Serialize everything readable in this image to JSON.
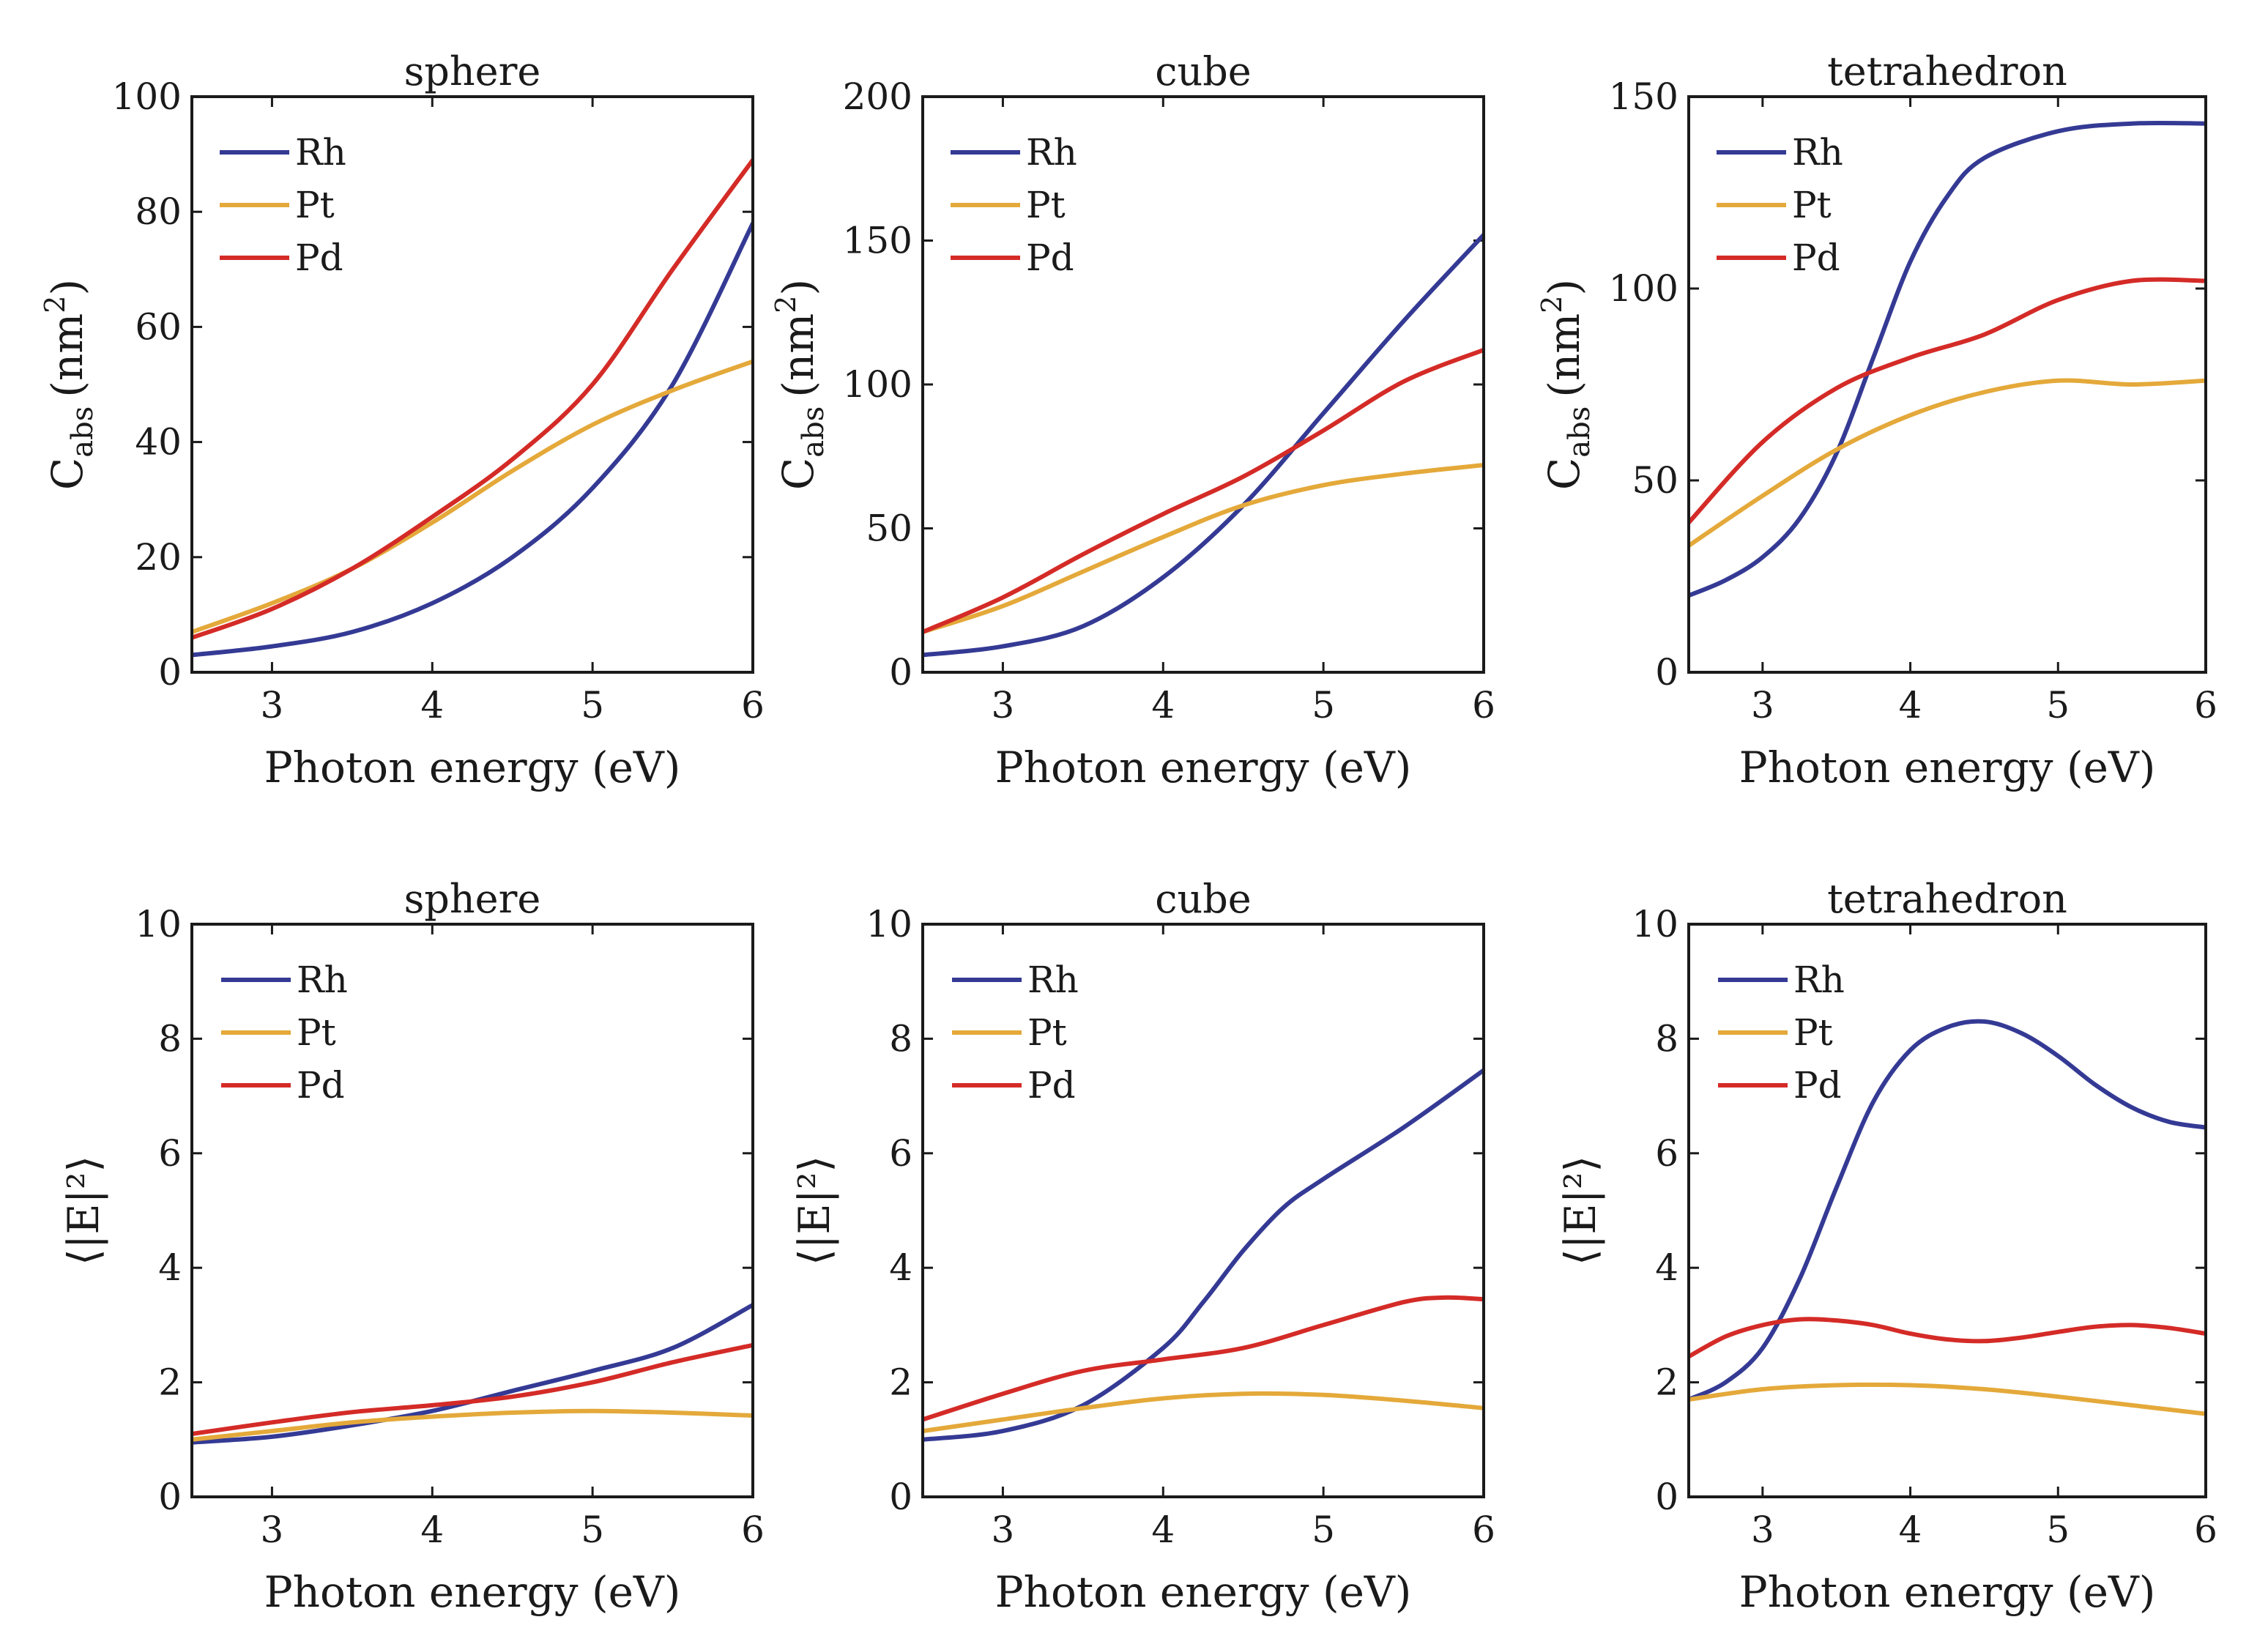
{
  "colors": {
    "Rh": "#343a94",
    "Pt": "#e4a93a",
    "Pd": "#d42b27",
    "axis": "#1a1a1a",
    "background": "#ffffff"
  },
  "chart_data": [
    {
      "type": "line",
      "title": "sphere",
      "xlabel": "Photon energy (eV)",
      "ylabel_main": "C",
      "ylabel_sub": "abs",
      "ylabel_unit": "(nm",
      "ylabel_sup": "2",
      "ylabel_close": ")",
      "xlim": [
        2.5,
        6
      ],
      "ylim": [
        0,
        100
      ],
      "xticks": [
        3,
        4,
        5,
        6
      ],
      "yticks": [
        0,
        20,
        40,
        60,
        80,
        100
      ],
      "legend": "top-left",
      "grid": false,
      "series": [
        {
          "name": "Rh",
          "x": [
            2.5,
            3.0,
            3.5,
            4.0,
            4.5,
            5.0,
            5.5,
            6.0
          ],
          "y": [
            3,
            4.5,
            7,
            12,
            20,
            32,
            50,
            78
          ]
        },
        {
          "name": "Pt",
          "x": [
            2.5,
            3.0,
            3.5,
            4.0,
            4.5,
            5.0,
            5.5,
            6.0
          ],
          "y": [
            7,
            12,
            18,
            26,
            35,
            43,
            49,
            54
          ]
        },
        {
          "name": "Pd",
          "x": [
            2.5,
            3.0,
            3.5,
            4.0,
            4.5,
            5.0,
            5.5,
            6.0
          ],
          "y": [
            6,
            11,
            18,
            27,
            37,
            50,
            70,
            89
          ]
        }
      ]
    },
    {
      "type": "line",
      "title": "cube",
      "xlabel": "Photon energy (eV)",
      "ylabel_main": "C",
      "ylabel_sub": "abs",
      "ylabel_unit": "(nm",
      "ylabel_sup": "2",
      "ylabel_close": ")",
      "xlim": [
        2.5,
        6
      ],
      "ylim": [
        0,
        200
      ],
      "xticks": [
        3,
        4,
        5,
        6
      ],
      "yticks": [
        0,
        50,
        100,
        150,
        200
      ],
      "legend": "top-left",
      "grid": false,
      "series": [
        {
          "name": "Rh",
          "x": [
            2.5,
            3.0,
            3.5,
            4.0,
            4.5,
            5.0,
            5.5,
            6.0
          ],
          "y": [
            6,
            9,
            16,
            33,
            58,
            90,
            122,
            152
          ]
        },
        {
          "name": "Pt",
          "x": [
            2.5,
            3.0,
            3.5,
            4.0,
            4.5,
            5.0,
            5.5,
            6.0
          ],
          "y": [
            14,
            23,
            35,
            47,
            58,
            65,
            69,
            72
          ]
        },
        {
          "name": "Pd",
          "x": [
            2.5,
            3.0,
            3.5,
            4.0,
            4.5,
            5.0,
            5.5,
            6.0
          ],
          "y": [
            14,
            26,
            41,
            55,
            68,
            84,
            101,
            112
          ]
        }
      ]
    },
    {
      "type": "line",
      "title": "tetrahedron",
      "xlabel": "Photon energy (eV)",
      "ylabel_main": "C",
      "ylabel_sub": "abs",
      "ylabel_unit": "(nm",
      "ylabel_sup": "2",
      "ylabel_close": ")",
      "xlim": [
        2.5,
        6
      ],
      "ylim": [
        0,
        150
      ],
      "xticks": [
        3,
        4,
        5,
        6
      ],
      "yticks": [
        0,
        50,
        100,
        150
      ],
      "legend": "top-left",
      "grid": false,
      "series": [
        {
          "name": "Rh",
          "x": [
            2.5,
            2.75,
            3.0,
            3.25,
            3.5,
            3.75,
            4.0,
            4.25,
            4.5,
            5.0,
            5.5,
            6.0
          ],
          "y": [
            20,
            24,
            30,
            40,
            57,
            82,
            107,
            124,
            134,
            141,
            143,
            143
          ]
        },
        {
          "name": "Pt",
          "x": [
            2.5,
            3.0,
            3.5,
            4.0,
            4.5,
            5.0,
            5.5,
            6.0
          ],
          "y": [
            33,
            46,
            58,
            67,
            73,
            76,
            75,
            76
          ]
        },
        {
          "name": "Pd",
          "x": [
            2.5,
            3.0,
            3.5,
            4.0,
            4.5,
            5.0,
            5.5,
            6.0
          ],
          "y": [
            39,
            60,
            74,
            82,
            88,
            97,
            102,
            102
          ]
        }
      ]
    },
    {
      "type": "line",
      "title": "sphere",
      "xlabel": "Photon energy (eV)",
      "ylabel": "⟨|E|²⟩",
      "xlim": [
        2.5,
        6
      ],
      "ylim": [
        0,
        10
      ],
      "xticks": [
        3,
        4,
        5,
        6
      ],
      "yticks": [
        0,
        2,
        4,
        6,
        8,
        10
      ],
      "legend": "top-left",
      "grid": false,
      "series": [
        {
          "name": "Rh",
          "x": [
            2.5,
            3.0,
            3.5,
            4.0,
            4.5,
            5.0,
            5.5,
            6.0
          ],
          "y": [
            0.95,
            1.05,
            1.25,
            1.5,
            1.85,
            2.2,
            2.6,
            3.35
          ]
        },
        {
          "name": "Pt",
          "x": [
            2.5,
            3.0,
            3.5,
            4.0,
            4.5,
            5.0,
            5.5,
            6.0
          ],
          "y": [
            1.0,
            1.15,
            1.3,
            1.4,
            1.47,
            1.5,
            1.47,
            1.42
          ]
        },
        {
          "name": "Pd",
          "x": [
            2.5,
            3.0,
            3.5,
            4.0,
            4.5,
            5.0,
            5.5,
            6.0
          ],
          "y": [
            1.1,
            1.3,
            1.48,
            1.6,
            1.75,
            2.0,
            2.35,
            2.65
          ]
        }
      ]
    },
    {
      "type": "line",
      "title": "cube",
      "xlabel": "Photon energy (eV)",
      "ylabel": "⟨|E|²⟩",
      "xlim": [
        2.5,
        6
      ],
      "ylim": [
        0,
        10
      ],
      "xticks": [
        3,
        4,
        5,
        6
      ],
      "yticks": [
        0,
        2,
        4,
        6,
        8,
        10
      ],
      "legend": "top-left",
      "grid": false,
      "series": [
        {
          "name": "Rh",
          "x": [
            2.5,
            3.0,
            3.5,
            4.0,
            4.25,
            4.5,
            4.75,
            5.0,
            5.5,
            6.0
          ],
          "y": [
            1.0,
            1.15,
            1.6,
            2.6,
            3.4,
            4.3,
            5.05,
            5.55,
            6.45,
            7.45
          ]
        },
        {
          "name": "Pt",
          "x": [
            2.5,
            3.0,
            3.5,
            4.0,
            4.5,
            5.0,
            5.5,
            6.0
          ],
          "y": [
            1.15,
            1.35,
            1.55,
            1.72,
            1.8,
            1.78,
            1.68,
            1.55
          ]
        },
        {
          "name": "Pd",
          "x": [
            2.5,
            3.0,
            3.5,
            4.0,
            4.5,
            5.0,
            5.5,
            5.75,
            6.0
          ],
          "y": [
            1.35,
            1.8,
            2.2,
            2.4,
            2.6,
            3.0,
            3.4,
            3.48,
            3.45
          ]
        }
      ]
    },
    {
      "type": "line",
      "title": "tetrahedron",
      "xlabel": "Photon energy (eV)",
      "ylabel": "⟨|E|²⟩",
      "xlim": [
        2.5,
        6
      ],
      "ylim": [
        0,
        10
      ],
      "xticks": [
        3,
        4,
        5,
        6
      ],
      "yticks": [
        0,
        2,
        4,
        6,
        8,
        10
      ],
      "legend": "top-left",
      "grid": false,
      "series": [
        {
          "name": "Rh",
          "x": [
            2.5,
            2.75,
            3.0,
            3.25,
            3.5,
            3.75,
            4.0,
            4.25,
            4.5,
            4.75,
            5.0,
            5.25,
            5.5,
            5.75,
            6.0
          ],
          "y": [
            1.7,
            2.0,
            2.6,
            3.8,
            5.4,
            6.9,
            7.8,
            8.2,
            8.3,
            8.1,
            7.7,
            7.2,
            6.8,
            6.55,
            6.45
          ]
        },
        {
          "name": "Pt",
          "x": [
            2.5,
            3.0,
            3.5,
            4.0,
            4.5,
            5.0,
            5.5,
            6.0
          ],
          "y": [
            1.7,
            1.88,
            1.95,
            1.95,
            1.88,
            1.75,
            1.6,
            1.45
          ]
        },
        {
          "name": "Pd",
          "x": [
            2.5,
            2.75,
            3.0,
            3.25,
            3.5,
            3.75,
            4.0,
            4.25,
            4.5,
            4.75,
            5.0,
            5.25,
            5.5,
            5.75,
            6.0
          ],
          "y": [
            2.45,
            2.8,
            3.0,
            3.1,
            3.08,
            3.0,
            2.85,
            2.75,
            2.72,
            2.78,
            2.88,
            2.97,
            3.0,
            2.95,
            2.85
          ]
        }
      ]
    }
  ]
}
